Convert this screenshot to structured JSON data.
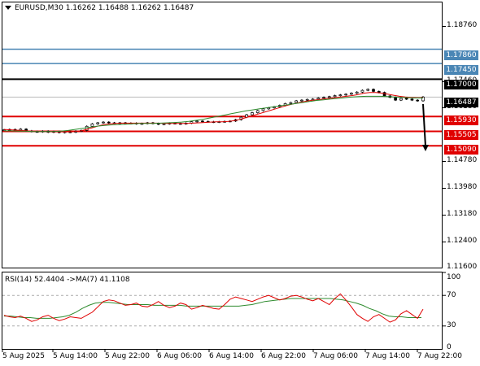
{
  "header": {
    "symbol": "EURUSD,M30",
    "open": "1.16262",
    "high": "1.16488",
    "low": "1.16262",
    "close": "1.16487"
  },
  "rsi_header": {
    "label": "RSI(14) 52.4404",
    "ma_label": "->MA(7) 41.1108"
  },
  "price_axis": {
    "ticks": [
      "1.18760",
      "1.17460",
      "1.16180",
      "1.14780",
      "1.13980",
      "1.13180",
      "1.12400",
      "1.11600"
    ]
  },
  "price_tags": [
    {
      "value": "1.17860",
      "color": "#4a86b5",
      "text_color": "#ffffff"
    },
    {
      "value": "1.17450",
      "color": "#4a86b5",
      "text_color": "#ffffff"
    },
    {
      "value": "1.17000",
      "color": "#000000",
      "text_color": "#ffffff"
    },
    {
      "value": "1.16487",
      "color": "#000000",
      "text_color": "#ffffff"
    },
    {
      "value": "1.15930",
      "color": "#e00000",
      "text_color": "#ffffff"
    },
    {
      "value": "1.15505",
      "color": "#e00000",
      "text_color": "#ffffff"
    },
    {
      "value": "1.15090",
      "color": "#e00000",
      "text_color": "#ffffff"
    }
  ],
  "rsi_axis": {
    "ticks": [
      "100",
      "70",
      "30",
      "0"
    ]
  },
  "time_axis": {
    "ticks": [
      "5 Aug 2025",
      "5 Aug 14:00",
      "5 Aug 22:00",
      "6 Aug 06:00",
      "6 Aug 14:00",
      "6 Aug 22:00",
      "7 Aug 06:00",
      "7 Aug 14:00",
      "7 Aug 22:00"
    ]
  },
  "colors": {
    "candle": "#000000",
    "ma_fast": "#e00000",
    "ma_slow": "#2e8b2e",
    "rsi_line": "#e00000",
    "rsi_ma": "#2e8b2e",
    "resistance_blue": "#4a86b5",
    "support_red": "#e00000"
  },
  "chart_data": [
    {
      "type": "candlestick",
      "title": "EURUSD,M30",
      "ylim": [
        1.116,
        1.192
      ],
      "horizontal_levels": [
        {
          "value": 1.1786,
          "color": "blue"
        },
        {
          "value": 1.1745,
          "color": "blue"
        },
        {
          "value": 1.17,
          "color": "black"
        },
        {
          "value": 1.1593,
          "color": "red"
        },
        {
          "value": 1.15505,
          "color": "red"
        },
        {
          "value": 1.1509,
          "color": "red"
        }
      ],
      "close_series": [
        1.1555,
        1.1556,
        1.1554,
        1.1557,
        1.1552,
        1.155,
        1.1549,
        1.1551,
        1.1548,
        1.155,
        1.1547,
        1.1549,
        1.1548,
        1.1551,
        1.1553,
        1.1565,
        1.1572,
        1.1575,
        1.1577,
        1.1575,
        1.1574,
        1.1575,
        1.1573,
        1.1574,
        1.1572,
        1.1573,
        1.1575,
        1.1573,
        1.1571,
        1.1572,
        1.1574,
        1.1573,
        1.1572,
        1.1574,
        1.1578,
        1.158,
        1.1579,
        1.1578,
        1.1577,
        1.1578,
        1.1579,
        1.158,
        1.1584,
        1.1591,
        1.1598,
        1.1604,
        1.161,
        1.1615,
        1.1618,
        1.1621,
        1.1625,
        1.163,
        1.1633,
        1.1638,
        1.164,
        1.1642,
        1.1643,
        1.1646,
        1.1648,
        1.165,
        1.1653,
        1.1655,
        1.1657,
        1.166,
        1.1663,
        1.1668,
        1.1671,
        1.1665,
        1.1662,
        1.1652,
        1.1648,
        1.164,
        1.1645,
        1.1643,
        1.164,
        1.1638,
        1.1649
      ],
      "ma_fast_series": [
        1.1556,
        1.1555,
        1.1554,
        1.1553,
        1.1552,
        1.1551,
        1.155,
        1.155,
        1.1549,
        1.1549,
        1.1549,
        1.1549,
        1.155,
        1.1552,
        1.1556,
        1.1561,
        1.1566,
        1.157,
        1.1572,
        1.1573,
        1.1574,
        1.1574,
        1.1574,
        1.1574,
        1.1574,
        1.1574,
        1.1574,
        1.1573,
        1.1573,
        1.1573,
        1.1573,
        1.1573,
        1.1574,
        1.1575,
        1.1576,
        1.1577,
        1.1578,
        1.1578,
        1.1579,
        1.1581,
        1.1585,
        1.159,
        1.1595,
        1.16,
        1.1605,
        1.161,
        1.1615,
        1.162,
        1.1625,
        1.1629,
        1.1633,
        1.1636,
        1.1639,
        1.1641,
        1.1643,
        1.1645,
        1.1647,
        1.1649,
        1.1651,
        1.1653,
        1.1656,
        1.166,
        1.1662,
        1.1662,
        1.166,
        1.1657,
        1.1654,
        1.1651,
        1.1649,
        1.1648,
        1.1647,
        1.1647
      ],
      "ma_slow_series": [
        1.1552,
        1.1552,
        1.1551,
        1.1551,
        1.155,
        1.155,
        1.155,
        1.155,
        1.1551,
        1.1553,
        1.1556,
        1.1559,
        1.1562,
        1.1565,
        1.1567,
        1.1569,
        1.157,
        1.1571,
        1.1572,
        1.1573,
        1.1573,
        1.1573,
        1.1574,
        1.1575,
        1.1576,
        1.1577,
        1.1579,
        1.1582,
        1.1585,
        1.1589,
        1.1593,
        1.1597,
        1.1601,
        1.1605,
        1.1609,
        1.1612,
        1.1615,
        1.1618,
        1.1621,
        1.1624,
        1.1627,
        1.163,
        1.1633,
        1.1636,
        1.1639,
        1.1641,
        1.1643,
        1.1645,
        1.1647,
        1.1649,
        1.165,
        1.1651,
        1.1651,
        1.1651,
        1.165,
        1.1649,
        1.1648,
        1.1647,
        1.1646,
        1.1646
      ]
    },
    {
      "type": "line",
      "title": "RSI(14)",
      "ylim": [
        0,
        100
      ],
      "levels": [
        70,
        30
      ],
      "series": [
        {
          "name": "RSI(14)",
          "values": [
            44,
            42,
            41,
            43,
            40,
            36,
            38,
            42,
            44,
            40,
            37,
            39,
            42,
            41,
            40,
            44,
            48,
            55,
            62,
            64,
            63,
            60,
            57,
            58,
            60,
            56,
            55,
            58,
            62,
            57,
            54,
            56,
            60,
            58,
            52,
            54,
            57,
            55,
            53,
            52,
            58,
            65,
            68,
            66,
            64,
            62,
            65,
            68,
            70,
            67,
            64,
            66,
            69,
            70,
            68,
            65,
            63,
            66,
            62,
            58,
            66,
            72,
            64,
            55,
            45,
            40,
            36,
            42,
            45,
            40,
            35,
            38,
            46,
            50,
            45,
            40,
            52
          ]
        },
        {
          "name": "MA(7)",
          "values": [
            43,
            43,
            42,
            41,
            41,
            40,
            40,
            40,
            41,
            42,
            44,
            48,
            53,
            57,
            60,
            61,
            61,
            60,
            59,
            58,
            58,
            58,
            58,
            57,
            57,
            57,
            57,
            57,
            56,
            56,
            56,
            56,
            56,
            56,
            56,
            56,
            56,
            57,
            58,
            60,
            62,
            63,
            64,
            65,
            66,
            66,
            66,
            66,
            66,
            66,
            66,
            65,
            64,
            62,
            60,
            57,
            53,
            50,
            46,
            43,
            42,
            42,
            41,
            41,
            41
          ]
        }
      ]
    }
  ]
}
